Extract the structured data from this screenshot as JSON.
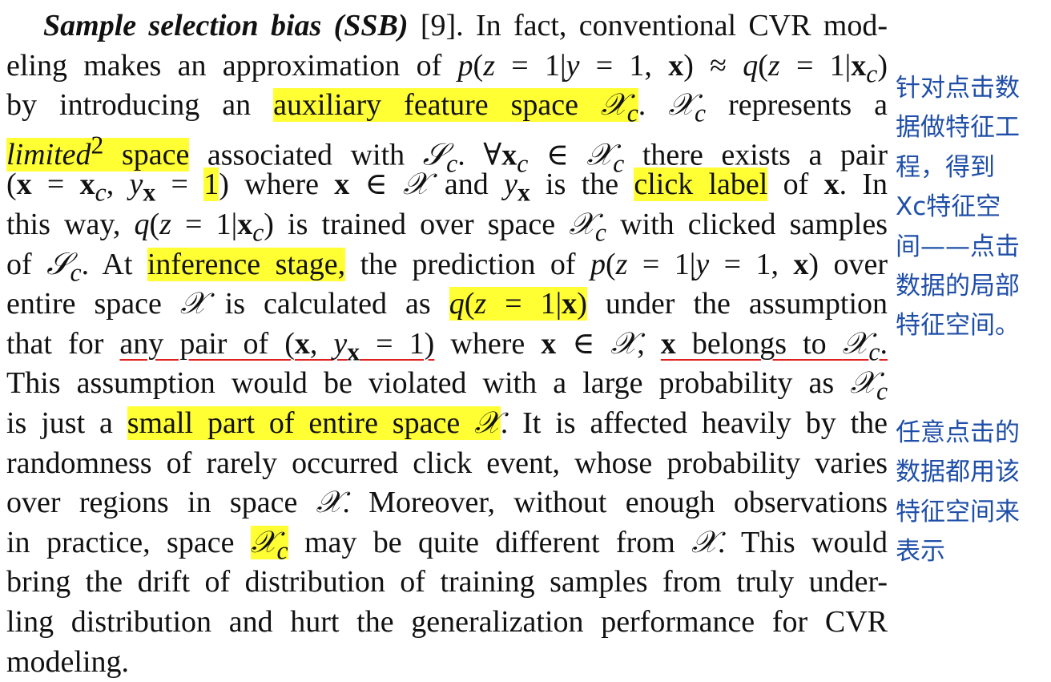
{
  "paragraph": {
    "lines": [
      "Sample selection bias (SSB) [9]. In fact, conventional CVR mod-",
      "eling makes an approximation of p(z = 1|y = 1, x) ≈ q(z = 1|xc)",
      "by introducing an auxiliary feature space Xc. Xc represents a",
      "limited² space associated with Sc. ∀xc ∈ Xc there exists a pair",
      "(x = xc, yx = 1) where x ∈ X and yx is the click label of x. In",
      "this way, q(z = 1|xc) is trained over space Xc with clicked samples",
      "of Sc. At inference stage, the prediction of p(z = 1|y = 1, x) over",
      "entire space X is calculated as q(z = 1|x) under the assumption",
      "that for any pair of (x, yx = 1) where x ∈ X, x belongs to Xc.",
      "This assumption would be violated with a large probability as Xc",
      "is just a small part of entire space X. It is affected heavily by the",
      "randomness of rarely occurred click event, whose probability varies",
      "over regions in space X. Moreover, without enough observations",
      "in practice, space Xc may be quite different from X. This would",
      "bring the drift of distribution of training samples from truly under-",
      "ling distribution and hurt the generalization performance for CVR",
      "modeling."
    ],
    "highlights": [
      "auxiliary feature space Xc",
      "limited² space",
      "1",
      "click label",
      "inference stage,",
      "q(z = 1|x)",
      "small part of entire space X",
      "Xc"
    ],
    "underlines": [
      "any pair of (x, yx = 1)",
      "x belongs to Xc."
    ],
    "highlight_color": "#ffff33",
    "underline_color": "#e02020"
  },
  "annotations": [
    {
      "lines": [
        "针对点击数",
        "据做特征工",
        "程，得到",
        "Xc特征空",
        "间——点击",
        "数据的局部",
        "特征空间。"
      ]
    },
    {
      "lines": [
        "任意点击的",
        "数据都用该",
        "特征空间来",
        "表示"
      ]
    }
  ],
  "annotation_color": "#1f4fa8"
}
